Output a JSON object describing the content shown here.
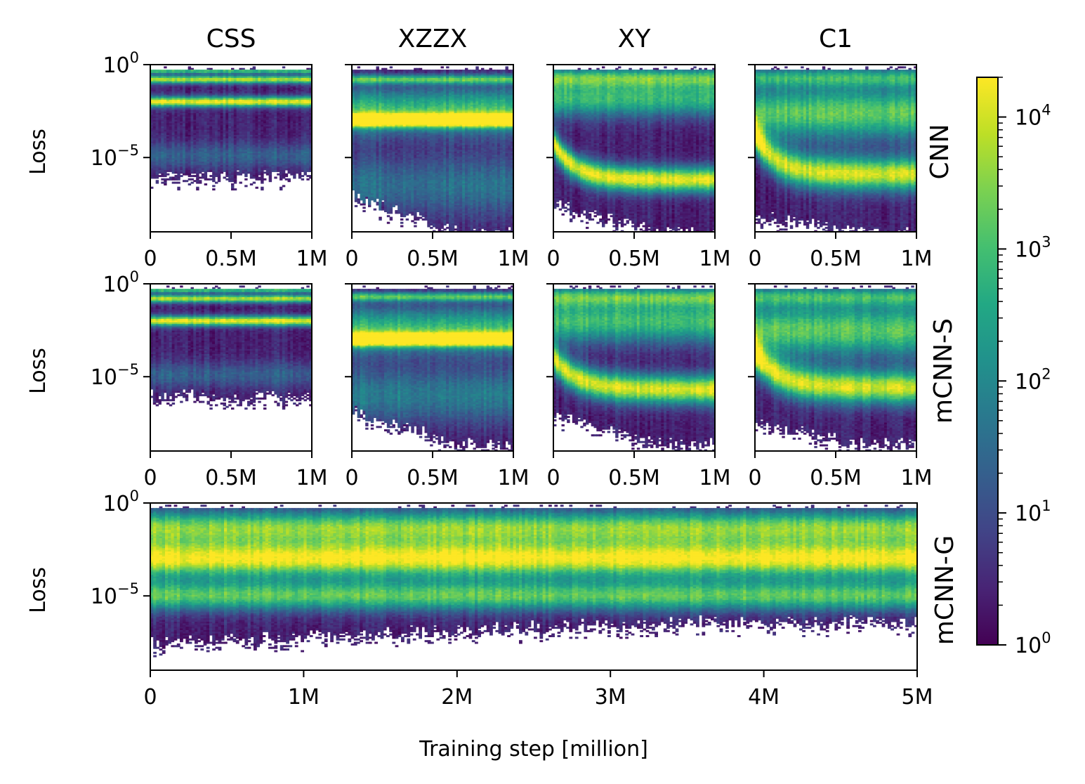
{
  "chart_data": {
    "type": "heatmap",
    "colorscale": "viridis",
    "colorbar": {
      "scale": "log",
      "range": [
        1,
        20000
      ],
      "ticks": [
        {
          "value": 1,
          "base": "10",
          "exp": "0"
        },
        {
          "value": 10,
          "base": "10",
          "exp": "1"
        },
        {
          "value": 100,
          "base": "10",
          "exp": "2"
        },
        {
          "value": 1000,
          "base": "10",
          "exp": "3"
        },
        {
          "value": 10000,
          "base": "10",
          "exp": "4"
        }
      ]
    },
    "xlabel": "Training step [million]",
    "ylabel": "Loss",
    "y_scale": "log",
    "ylim": [
      1e-09,
      1
    ],
    "y_ticks": [
      {
        "value": 1,
        "base": "10",
        "exp": "0"
      },
      {
        "value": 1e-05,
        "base": "10",
        "exp": "−5"
      }
    ],
    "columns": [
      "CSS",
      "XZZX",
      "XY",
      "C1"
    ],
    "rows": [
      "CNN",
      "mCNN-S",
      "mCNN-G"
    ],
    "small_x_ticks": [
      {
        "value": 0,
        "label": "0"
      },
      {
        "value": 0.5,
        "label": "0.5M"
      },
      {
        "value": 1,
        "label": "1M"
      }
    ],
    "small_xlim": [
      0,
      1
    ],
    "big_x_ticks": [
      {
        "value": 0,
        "label": "0"
      },
      {
        "value": 1,
        "label": "1M"
      },
      {
        "value": 2,
        "label": "2M"
      },
      {
        "value": 3,
        "label": "3M"
      },
      {
        "value": 4,
        "label": "4M"
      },
      {
        "value": 5,
        "label": "5M"
      }
    ],
    "big_xlim": [
      0,
      5
    ],
    "panels": [
      {
        "row": "CNN",
        "column": "CSS",
        "bands": [
          [
            -0.8,
            3.4,
            0.22
          ],
          [
            -2.0,
            3.8,
            0.28
          ],
          [
            -0.35,
            2.6,
            0.12
          ],
          [
            -4.9,
            0.9,
            0.7
          ]
        ],
        "floor_start": -6.0,
        "floor_end": -6.0
      },
      {
        "row": "CNN",
        "column": "XZZX",
        "bands": [
          [
            -0.8,
            2.6,
            0.25
          ],
          [
            -3.0,
            3.9,
            0.35
          ],
          [
            -2.5,
            2.6,
            1.2
          ],
          [
            -6.5,
            1.2,
            1.6
          ]
        ],
        "floor_start": -7.0,
        "floor_end": -9.0
      },
      {
        "row": "CNN",
        "column": "XY",
        "bands": [
          [
            -0.7,
            2.3,
            0.5
          ],
          [
            -1.8,
            2.5,
            1.0
          ]
        ],
        "fall": {
          "start": -4.2,
          "end": -6.2,
          "peak": 3.8,
          "width": 0.7,
          "tau": 0.13
        },
        "floor_start": -7.5,
        "floor_end": -9.0
      },
      {
        "row": "CNN",
        "column": "C1",
        "bands": [
          [
            -0.7,
            2.1,
            0.5
          ],
          [
            -2.6,
            2.8,
            1.4
          ]
        ],
        "fall": {
          "start": -3.8,
          "end": -5.9,
          "peak": 3.6,
          "width": 0.9,
          "tau": 0.13
        },
        "floor_start": -8.0,
        "floor_end": -9.0
      },
      {
        "row": "mCNN-S",
        "column": "CSS",
        "bands": [
          [
            -0.8,
            3.4,
            0.22
          ],
          [
            -2.0,
            3.8,
            0.28
          ],
          [
            -0.35,
            2.6,
            0.12
          ],
          [
            -4.9,
            0.9,
            0.7
          ]
        ],
        "floor_start": -6.0,
        "floor_end": -6.0
      },
      {
        "row": "mCNN-S",
        "column": "XZZX",
        "bands": [
          [
            -0.7,
            2.6,
            0.25
          ],
          [
            -3.0,
            3.9,
            0.35
          ],
          [
            -2.5,
            2.6,
            1.2
          ],
          [
            -6.0,
            1.4,
            1.5
          ]
        ],
        "floor_start": -6.8,
        "floor_end": -8.6
      },
      {
        "row": "mCNN-S",
        "column": "XY",
        "bands": [
          [
            -0.7,
            2.2,
            0.5
          ],
          [
            -2.0,
            2.6,
            1.2
          ]
        ],
        "fall": {
          "start": -4.0,
          "end": -5.7,
          "peak": 3.7,
          "width": 0.8,
          "tau": 0.15
        },
        "floor_start": -7.0,
        "floor_end": -8.6
      },
      {
        "row": "mCNN-S",
        "column": "C1",
        "bands": [
          [
            -0.7,
            2.1,
            0.5
          ],
          [
            -2.5,
            2.8,
            1.4
          ]
        ],
        "fall": {
          "start": -3.8,
          "end": -5.6,
          "peak": 3.6,
          "width": 0.9,
          "tau": 0.15
        },
        "floor_start": -7.5,
        "floor_end": -8.6
      },
      {
        "row": "mCNN-G",
        "column": "all",
        "bands": [
          [
            -3.0,
            3.9,
            1.0
          ],
          [
            -1.3,
            3.0,
            0.9
          ],
          [
            -5.0,
            2.8,
            0.8
          ]
        ],
        "floor_start": -7.5,
        "floor_end": -6.4
      }
    ]
  }
}
